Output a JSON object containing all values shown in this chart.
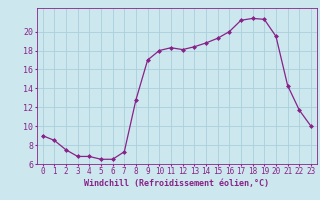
{
  "hours": [
    0,
    1,
    2,
    3,
    4,
    5,
    6,
    7,
    8,
    9,
    10,
    11,
    12,
    13,
    14,
    15,
    16,
    17,
    18,
    19,
    20,
    21,
    22,
    23
  ],
  "windchill": [
    9.0,
    8.5,
    7.5,
    6.8,
    6.8,
    6.5,
    6.5,
    7.3,
    12.8,
    17.0,
    18.0,
    18.3,
    18.1,
    18.4,
    18.8,
    19.3,
    20.0,
    21.2,
    21.4,
    21.3,
    19.5,
    14.3,
    11.7,
    10.0
  ],
  "line_color": "#882288",
  "marker": "D",
  "marker_size": 2.0,
  "bg_color": "#cce8ee",
  "grid_color": "#aad0dc",
  "text_color": "#882288",
  "xlabel": "Windchill (Refroidissement éolien,°C)",
  "ylim": [
    6,
    22
  ],
  "yticks": [
    6,
    8,
    10,
    12,
    14,
    16,
    18,
    20
  ],
  "xlim": [
    -0.5,
    23.5
  ],
  "tick_fontsize": 5.5,
  "label_fontsize": 6.0
}
